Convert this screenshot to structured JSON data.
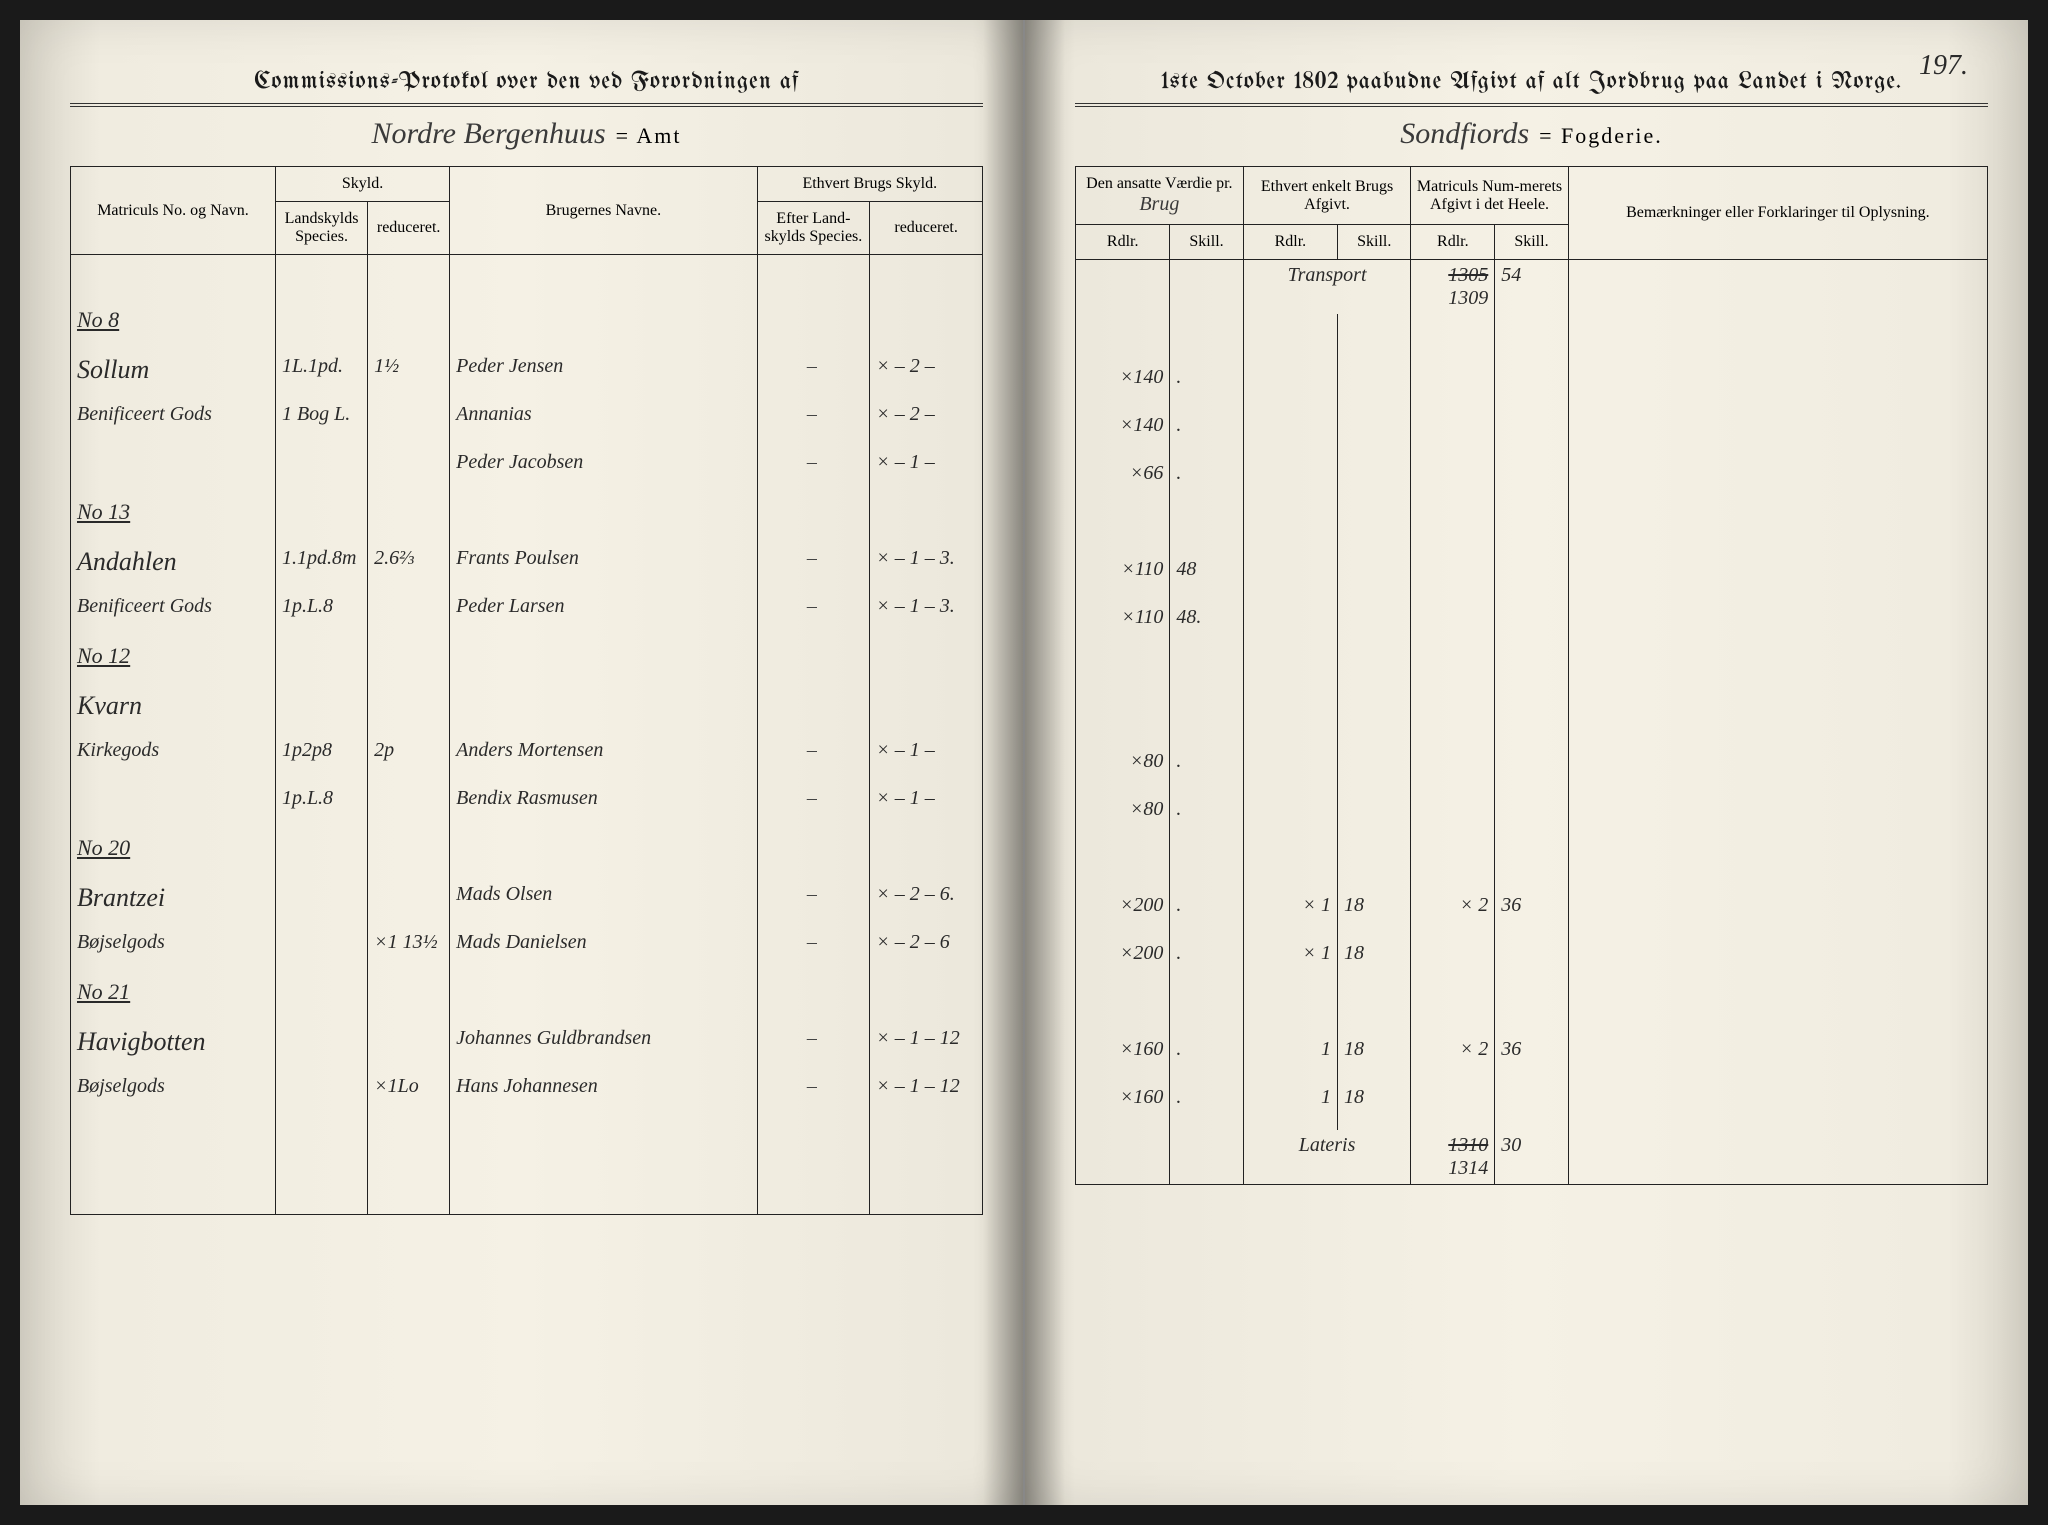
{
  "page_number": "197.",
  "left": {
    "title": "Commissions-Protokol over den ved Forordningen af",
    "amt_cursive": "Nordre Bergenhuus",
    "amt_suffix": "= Amt",
    "headers": {
      "matricul": "Matriculs No. og Navn.",
      "skyld": "Skyld.",
      "landskyld": "Landskylds Species.",
      "reduceret": "reduceret.",
      "brugernes": "Brugernes Navne.",
      "ethvert": "Ethvert Brugs Skyld.",
      "efter_land": "Efter Land-skylds Species.",
      "reduceret2": "reduceret."
    },
    "entries": [
      {
        "no": "No 8",
        "name": "Sollum",
        "sub": "Benificeert Gods",
        "sk1": "1L.1pd.",
        "sk2": "1½",
        "user": "Peder Jensen",
        "e1": "–",
        "e2": "× – 2 –"
      },
      {
        "no": "",
        "name": "",
        "sub": "",
        "sk1": "1 Bog L.",
        "sk2": "",
        "user": "Annanias",
        "e1": "–",
        "e2": "× – 2 –"
      },
      {
        "no": "",
        "name": "",
        "sub": "",
        "sk1": "",
        "sk2": "",
        "user": "Peder Jacobsen",
        "e1": "–",
        "e2": "× – 1 –"
      },
      {
        "no": "No 13",
        "name": "Andahlen",
        "sub": "Benificeert Gods",
        "sk1": "1.1pd.8m",
        "sk2": "2.6⅔",
        "user": "Frants Poulsen",
        "e1": "–",
        "e2": "× – 1 – 3."
      },
      {
        "no": "",
        "name": "",
        "sub": "",
        "sk1": "1p.L.8",
        "sk2": "",
        "user": "Peder Larsen",
        "e1": "–",
        "e2": "× – 1 – 3."
      },
      {
        "no": "No 12",
        "name": "Kvarn",
        "sub": "Kirkegods",
        "sk1": "1p2p8",
        "sk2": "2p",
        "user": "Anders Mortensen",
        "e1": "–",
        "e2": "× – 1 –"
      },
      {
        "no": "",
        "name": "",
        "sub": "",
        "sk1": "1p.L.8",
        "sk2": "",
        "user": "Bendix Rasmusen",
        "e1": "–",
        "e2": "× – 1 –"
      },
      {
        "no": "No 20",
        "name": "Brantzei",
        "sub": "Bøjselgods",
        "sk1": "",
        "sk2": "×1 13½",
        "user": "Mads Olsen",
        "e1": "–",
        "e2": "× – 2 – 6."
      },
      {
        "no": "",
        "name": "",
        "sub": "",
        "sk1": "",
        "sk2": "",
        "user": "Mads Danielsen",
        "e1": "–",
        "e2": "× – 2 – 6"
      },
      {
        "no": "No 21",
        "name": "Havigbotten",
        "sub": "Bøjselgods",
        "sk1": "",
        "sk2": "×1Lo",
        "user": "Johannes Guldbrandsen",
        "e1": "–",
        "e2": "× – 1 – 12"
      },
      {
        "no": "",
        "name": "",
        "sub": "",
        "sk1": "",
        "sk2": "",
        "user": "Hans Johannesen",
        "e1": "–",
        "e2": "× – 1 – 12"
      }
    ]
  },
  "right": {
    "title": "1ste October 1802 paabudne Afgivt af alt Jordbrug paa Landet i Norge.",
    "fogderie_cursive": "Sondfiords",
    "fogderie_suffix": "= Fogderie.",
    "headers": {
      "vaerdie": "Den ansatte Værdie pr.",
      "vaerdie_cursive": "Brug",
      "brugs": "Ethvert enkelt Brugs Afgivt.",
      "matricul": "Matriculs Num-merets Afgivt i det Heele.",
      "bem": "Bemærkninger eller Forklaringer til Oplysning.",
      "rdlr": "Rdlr.",
      "skill": "Skill."
    },
    "transport_label": "Transport",
    "transport_struck": "1305",
    "transport_val": "1309",
    "transport_skill": "54",
    "entries": [
      {
        "v1": "×140",
        "v2": ".",
        "b1": "",
        "b2": "",
        "m1": "",
        "m2": ""
      },
      {
        "v1": "×140",
        "v2": ".",
        "b1": "",
        "b2": "",
        "m1": "",
        "m2": ""
      },
      {
        "v1": "×66",
        "v2": ".",
        "b1": "",
        "b2": "",
        "m1": "",
        "m2": ""
      },
      {
        "v1": "×110",
        "v2": "48",
        "b1": "",
        "b2": "",
        "m1": "",
        "m2": ""
      },
      {
        "v1": "×110",
        "v2": "48.",
        "b1": "",
        "b2": "",
        "m1": "",
        "m2": ""
      },
      {
        "v1": "×80",
        "v2": ".",
        "b1": "",
        "b2": "",
        "m1": "",
        "m2": ""
      },
      {
        "v1": "×80",
        "v2": ".",
        "b1": "",
        "b2": "",
        "m1": "",
        "m2": ""
      },
      {
        "v1": "×200",
        "v2": ".",
        "b1": "× 1",
        "b2": "18",
        "m1": "× 2",
        "m2": "36"
      },
      {
        "v1": "×200",
        "v2": ".",
        "b1": "× 1",
        "b2": "18",
        "m1": "",
        "m2": ""
      },
      {
        "v1": "×160",
        "v2": ".",
        "b1": "1",
        "b2": "18",
        "m1": "× 2",
        "m2": "36"
      },
      {
        "v1": "×160",
        "v2": ".",
        "b1": "1",
        "b2": "18",
        "m1": "",
        "m2": ""
      }
    ],
    "lateris_label": "Lateris",
    "lateris_struck": "1310",
    "lateris_val": "1314",
    "lateris_skill": "30"
  }
}
